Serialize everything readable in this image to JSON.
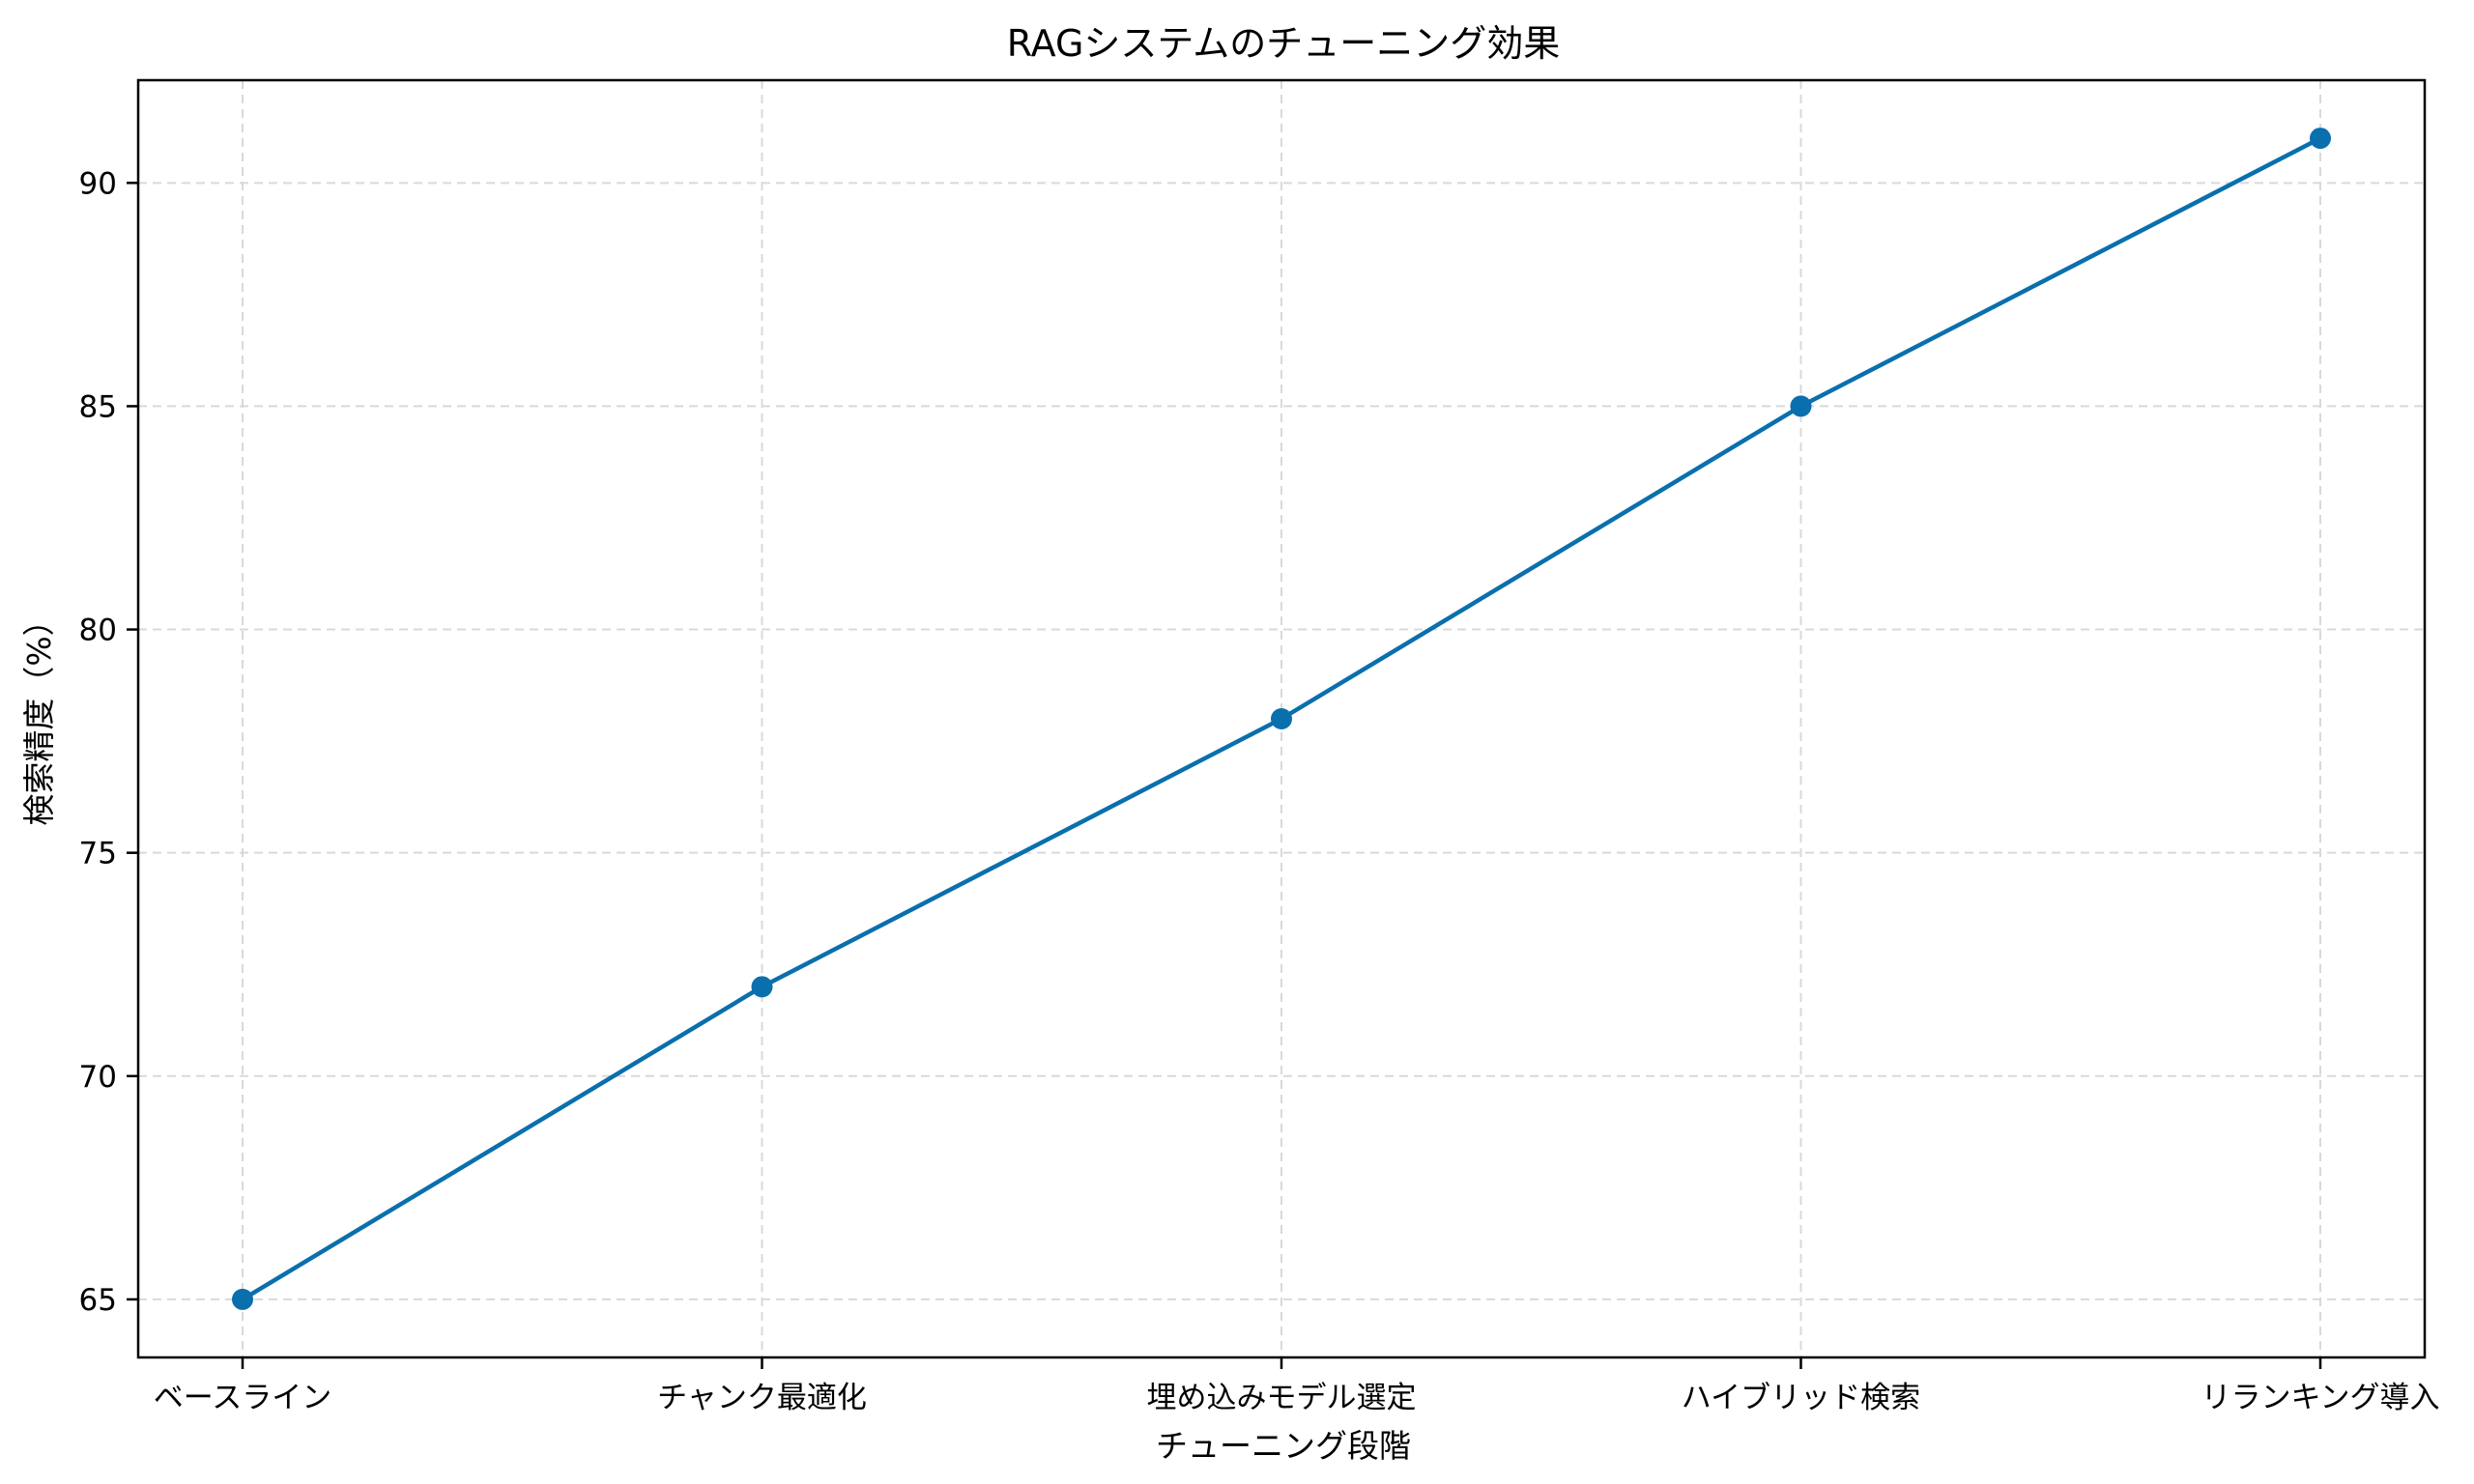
{
  "chart_data": {
    "type": "line",
    "title": "RAGシステムのチューニング効果",
    "xlabel": "チューニング段階",
    "ylabel": "検索精度（%）",
    "categories": [
      "ベースライン",
      "チャンク最適化",
      "埋め込みモデル選定",
      "ハイブリッド検索",
      "リランキング導入"
    ],
    "series": [
      {
        "values": [
          65,
          72,
          78,
          85,
          91
        ]
      }
    ],
    "yticks": [
      65,
      70,
      75,
      80,
      85,
      90
    ],
    "ylim": [
      63.7,
      92.3
    ],
    "grid": true,
    "marker": "circle",
    "line_color": "#0a6fad"
  }
}
